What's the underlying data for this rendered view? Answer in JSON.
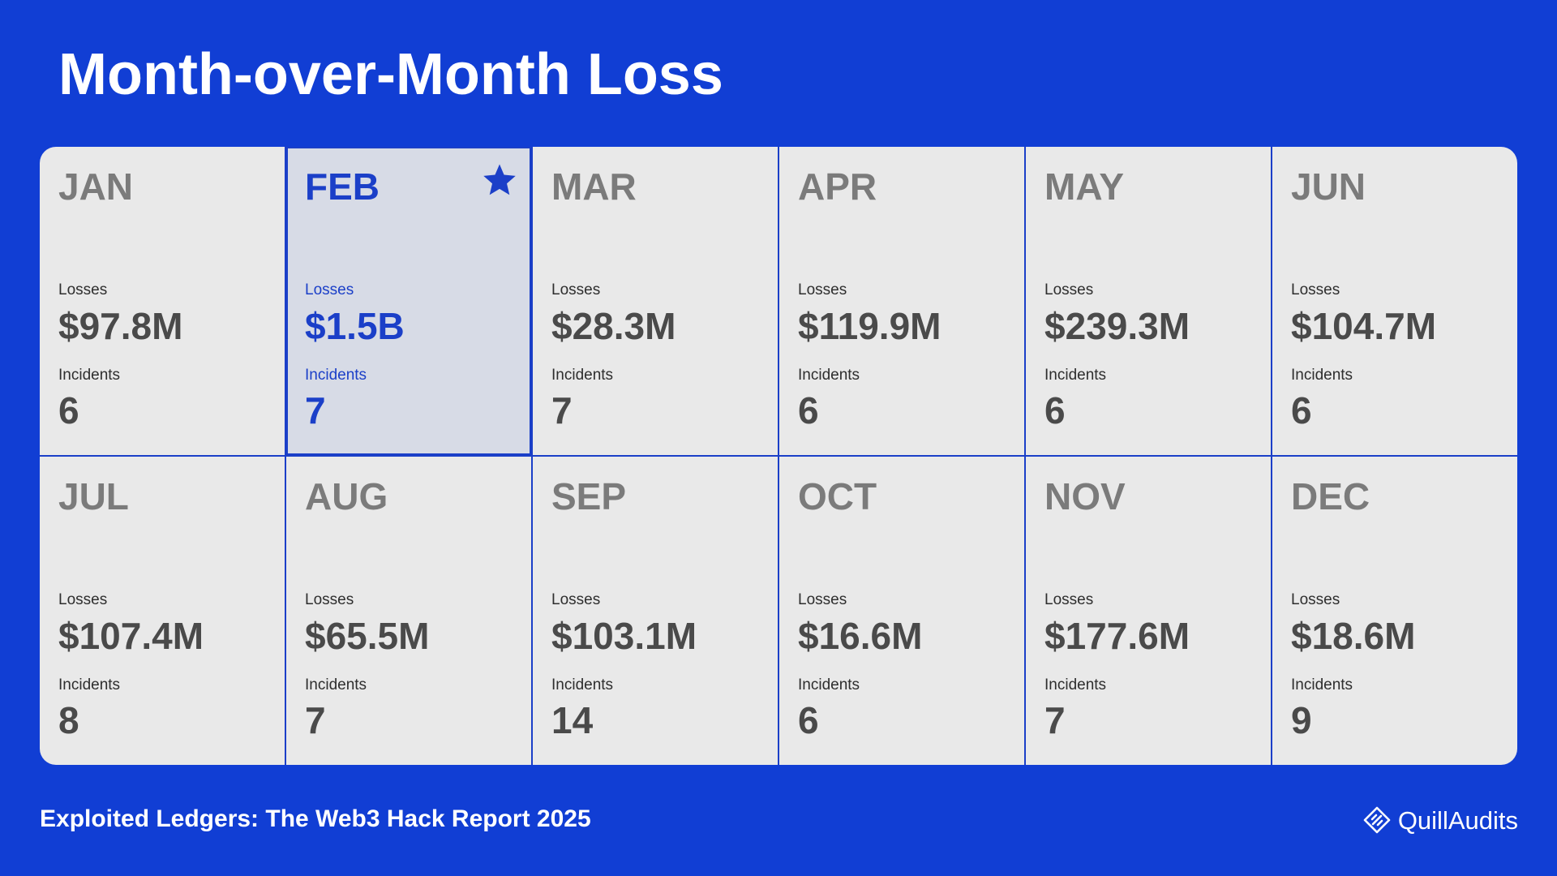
{
  "title": "Month-over-Month Loss",
  "footer_text": "Exploited Ledgers: The Web3 Hack Report 2025",
  "brand": "QuillAudits",
  "labels": {
    "losses": "Losses",
    "incidents": "Incidents"
  },
  "colors": {
    "background": "#113ed4",
    "accent": "#1b3fc8",
    "card": "#e9e9e9",
    "highlight_card": "#d7dbe6"
  },
  "highlight_icon": "star-icon",
  "months": [
    {
      "month": "JAN",
      "losses": "$97.8M",
      "incidents": "6",
      "highlight": false
    },
    {
      "month": "FEB",
      "losses": "$1.5B",
      "incidents": "7",
      "highlight": true
    },
    {
      "month": "MAR",
      "losses": "$28.3M",
      "incidents": "7",
      "highlight": false
    },
    {
      "month": "APR",
      "losses": "$119.9M",
      "incidents": "6",
      "highlight": false
    },
    {
      "month": "MAY",
      "losses": "$239.3M",
      "incidents": "6",
      "highlight": false
    },
    {
      "month": "JUN",
      "losses": "$104.7M",
      "incidents": "6",
      "highlight": false
    },
    {
      "month": "JUL",
      "losses": "$107.4M",
      "incidents": "8",
      "highlight": false
    },
    {
      "month": "AUG",
      "losses": "$65.5M",
      "incidents": "7",
      "highlight": false
    },
    {
      "month": "SEP",
      "losses": "$103.1M",
      "incidents": "14",
      "highlight": false
    },
    {
      "month": "OCT",
      "losses": "$16.6M",
      "incidents": "6",
      "highlight": false
    },
    {
      "month": "NOV",
      "losses": "$177.6M",
      "incidents": "7",
      "highlight": false
    },
    {
      "month": "DEC",
      "losses": "$18.6M",
      "incidents": "9",
      "highlight": false
    }
  ]
}
